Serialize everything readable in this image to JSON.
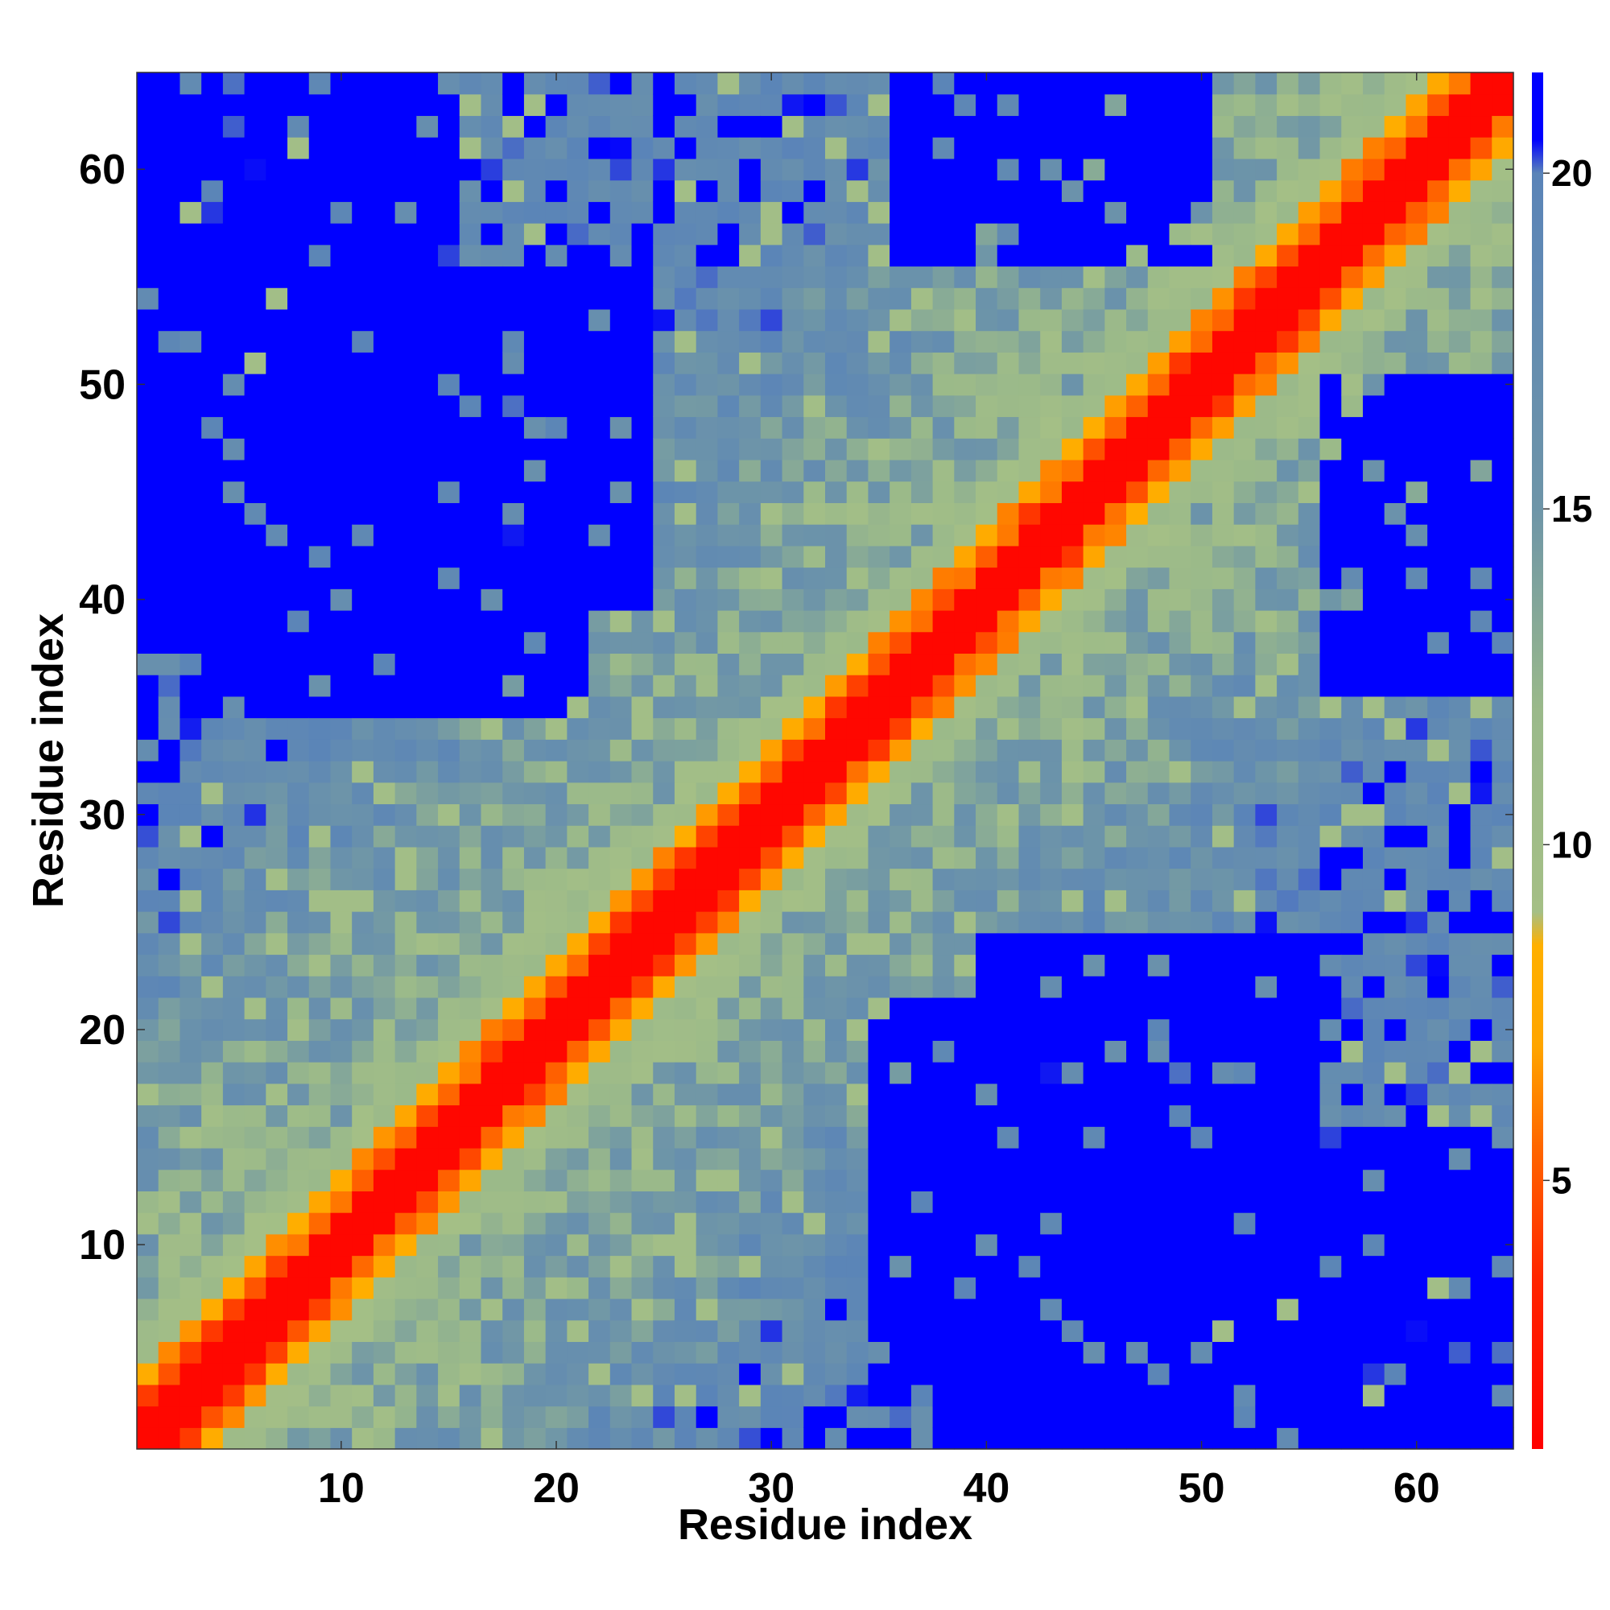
{
  "chart_data": {
    "type": "heatmap",
    "title": "",
    "xlabel": "Residue index",
    "ylabel": "Residue index",
    "n_residues": 64,
    "xlim": [
      0.5,
      64.5
    ],
    "ylim": [
      0.5,
      64.5
    ],
    "x_ticks": [
      10,
      20,
      30,
      40,
      50,
      60
    ],
    "y_ticks": [
      10,
      20,
      30,
      40,
      50,
      60
    ],
    "colorbar": {
      "range": [
        1,
        21.5
      ],
      "ticks": [
        5,
        10,
        15,
        20
      ],
      "stops": [
        {
          "value": 1.0,
          "color": "#ff0000"
        },
        {
          "value": 3.5,
          "color": "#ff2400"
        },
        {
          "value": 5.5,
          "color": "#ff6600"
        },
        {
          "value": 7.0,
          "color": "#ffa500"
        },
        {
          "value": 8.5,
          "color": "#ffb000"
        },
        {
          "value": 9.0,
          "color": "#a4bf86"
        },
        {
          "value": 12.0,
          "color": "#9ab98a"
        },
        {
          "value": 15.0,
          "color": "#6e95a8"
        },
        {
          "value": 20.0,
          "color": "#5a84b8"
        },
        {
          "value": 20.5,
          "color": "#0000ff"
        },
        {
          "value": 21.5,
          "color": "#0000ff"
        }
      ]
    },
    "distance_model": "symmetric pairwise residue distance matrix; values increase away from the diagonal and saturate (blue) beyond ~20",
    "blue_regions": [
      {
        "i": [
          1,
          15
        ],
        "j": [
          35,
          64
        ]
      },
      {
        "i": [
          10,
          25
        ],
        "j": [
          40,
          56
        ]
      },
      {
        "i": [
          35,
          50
        ],
        "j": [
          55,
          64
        ]
      },
      {
        "i": [
          45,
          60
        ],
        "j": [
          1,
          15
        ]
      },
      {
        "i": [
          40,
          60
        ],
        "j": [
          10,
          25
        ]
      },
      {
        "i": [
          3,
          22
        ],
        "j": [
          35,
          64
        ]
      }
    ]
  }
}
